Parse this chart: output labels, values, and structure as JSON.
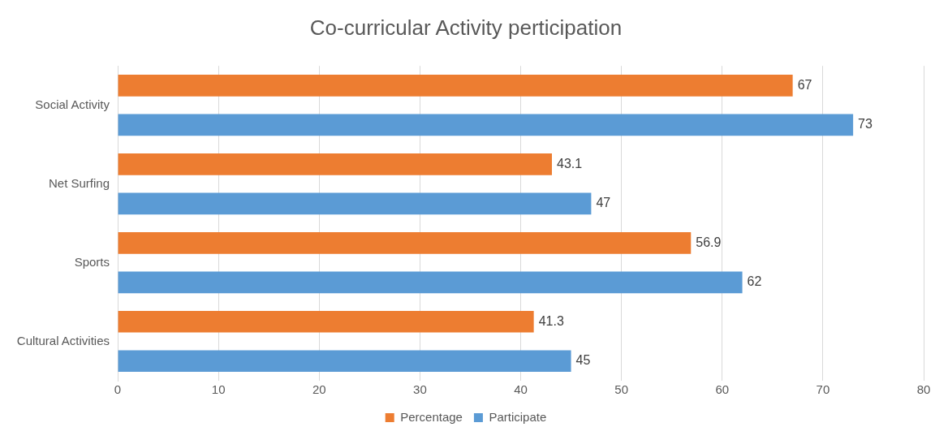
{
  "chart_data": {
    "type": "bar",
    "title": "Co-curricular Activity perticipation",
    "orientation": "horizontal",
    "categories": [
      "Social Activity",
      "Net Surfing",
      "Sports",
      "Cultural Activities"
    ],
    "series": [
      {
        "name": "Percentage",
        "color": "#ed7d31",
        "values": [
          67,
          43.1,
          56.9,
          41.3
        ]
      },
      {
        "name": "Participate",
        "color": "#5b9bd5",
        "values": [
          73,
          47,
          62,
          45
        ]
      }
    ],
    "xlim": [
      0,
      80
    ],
    "xticks": [
      0,
      10,
      20,
      30,
      40,
      50,
      60,
      70,
      80
    ],
    "grid": "x",
    "legend": "bottom",
    "data_labels": true
  }
}
